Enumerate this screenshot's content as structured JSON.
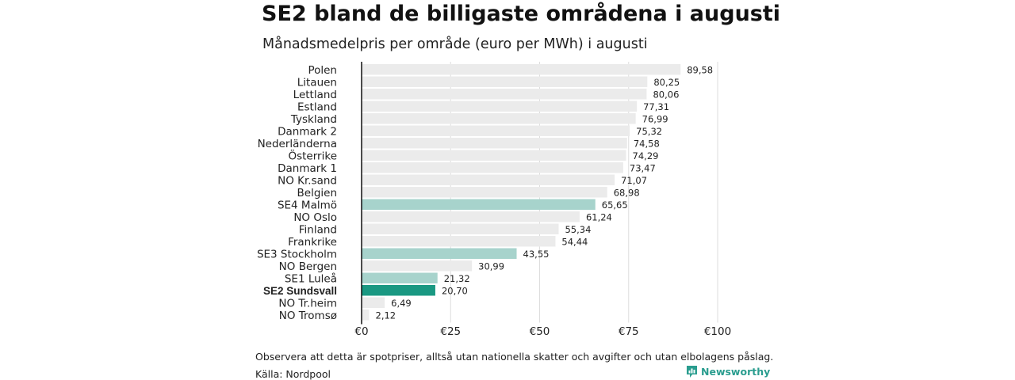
{
  "title": "SE2 bland de billigaste områdena i augusti",
  "subtitle": "Månadsmedelpris per område (euro per MWh) i augusti",
  "note": "Observera att detta är spotpriser, alltså utan nationella skatter och avgifter och utan elbolagens påslag.",
  "source": "Källa: Nordpool",
  "brand": "Newsworthy",
  "brand_icon": "bar-chart-logo-icon",
  "colors": {
    "default_bar": "#ebebeb",
    "swedish_bar": "#a7d3cc",
    "highlight_bar": "#1a9882",
    "axis": "#111111",
    "grid": "#dddddd",
    "brand": "#2a9d8f"
  },
  "chart_data": {
    "type": "bar",
    "orientation": "horizontal",
    "title": "SE2 bland de billigaste områdena i augusti",
    "subtitle": "Månadsmedelpris per område (euro per MWh) i augusti",
    "categories": [
      "Polen",
      "Litauen",
      "Lettland",
      "Estland",
      "Tyskland",
      "Danmark  2",
      "Nederländerna",
      "Österrike",
      "Danmark  1",
      "NO Kr.sand",
      "Belgien",
      "SE4  Malmö",
      "NO Oslo",
      "Finland",
      "Frankrike",
      "SE3  Stockholm",
      "NO Bergen",
      "SE1  Luleå",
      "SE2 Sundsvall",
      "NO Tr.heim",
      "NO Tromsø"
    ],
    "values": [
      89.58,
      80.25,
      80.06,
      77.31,
      76.99,
      75.32,
      74.58,
      74.29,
      73.47,
      71.07,
      68.98,
      65.65,
      61.24,
      55.34,
      54.44,
      43.55,
      30.99,
      21.32,
      20.7,
      6.49,
      2.12
    ],
    "value_labels": [
      "89,58",
      "80,25",
      "80,06",
      "77,31",
      "76,99",
      "75,32",
      "74,58",
      "74,29",
      "73,47",
      "71,07",
      "68,98",
      "65,65",
      "61,24",
      "55,34",
      "54,44",
      "43,55",
      "30,99",
      "21,32",
      "20,70",
      "6,49",
      "2,12"
    ],
    "highlight": "SE2 Sundsvall",
    "swedish_areas": [
      "SE4  Malmö",
      "SE3  Stockholm",
      "SE1  Luleå"
    ],
    "xlim": [
      0,
      100
    ],
    "xticks": [
      0,
      25,
      50,
      75,
      100
    ],
    "xtick_labels": [
      "€0",
      "€25",
      "€50",
      "€75",
      "€100"
    ],
    "xlabel": "",
    "ylabel": "",
    "grid": true,
    "legend": "none"
  }
}
